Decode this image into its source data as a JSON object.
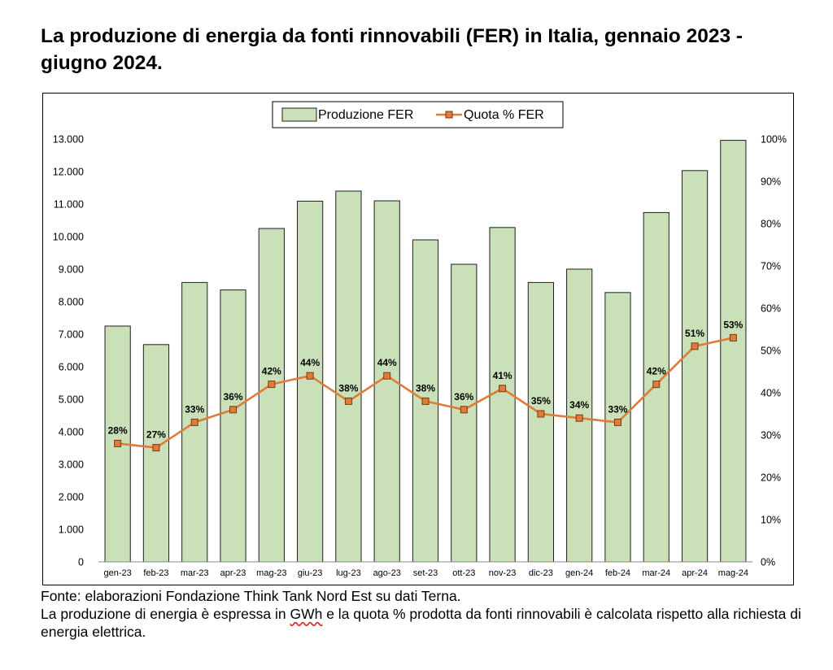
{
  "title": "La produzione di energia da fonti rinnovabili (FER) in Italia, gennaio 2023 - giugno 2024.",
  "chart_data": {
    "type": "bar",
    "categories": [
      "gen-23",
      "feb-23",
      "mar-23",
      "apr-23",
      "mag-23",
      "giu-23",
      "lug-23",
      "ago-23",
      "set-23",
      "ott-23",
      "nov-23",
      "dic-23",
      "gen-24",
      "feb-24",
      "mar-24",
      "apr-24",
      "mag-24"
    ],
    "series": [
      {
        "name": "Produzione FER",
        "type": "bar",
        "axis": "left",
        "values": [
          7250,
          6680,
          8590,
          8360,
          10250,
          11090,
          11400,
          11100,
          9900,
          9150,
          10280,
          8590,
          9000,
          8280,
          10740,
          12030,
          12960
        ]
      },
      {
        "name": "Quota % FER",
        "type": "line",
        "axis": "right",
        "values": [
          28,
          27,
          33,
          36,
          42,
          44,
          38,
          44,
          38,
          36,
          41,
          35,
          34,
          33,
          42,
          51,
          53
        ],
        "labels": [
          "28%",
          "27%",
          "33%",
          "36%",
          "42%",
          "44%",
          "38%",
          "44%",
          "38%",
          "36%",
          "41%",
          "35%",
          "34%",
          "33%",
          "42%",
          "51%",
          "53%"
        ]
      }
    ],
    "y_left": {
      "range": [
        0,
        13000
      ],
      "ticks": [
        "0",
        "1.000",
        "2.000",
        "3.000",
        "4.000",
        "5.000",
        "6.000",
        "7.000",
        "8.000",
        "9.000",
        "10.000",
        "11.000",
        "12.000",
        "13.000"
      ]
    },
    "y_right": {
      "range": [
        0,
        100
      ],
      "ticks": [
        "0%",
        "10%",
        "20%",
        "30%",
        "40%",
        "50%",
        "60%",
        "70%",
        "80%",
        "90%",
        "100%"
      ]
    },
    "legend": "top",
    "grid": false,
    "colors": {
      "bar_fill": "#c9e0b9",
      "bar_stroke": "#1f1f1f",
      "line": "#e07b39",
      "marker_fill": "#e07b39",
      "marker_stroke": "#7a3a10"
    }
  },
  "footer": {
    "line1": "Fonte: elaborazioni Fondazione Think Tank Nord Est su dati Terna.",
    "line2_pre": "La produzione di energia è espressa in ",
    "line2_unit": "GWh",
    "line2_post": " e la quota % prodotta da fonti rinnovabili è calcolata rispetto alla richiesta di energia elettrica."
  }
}
